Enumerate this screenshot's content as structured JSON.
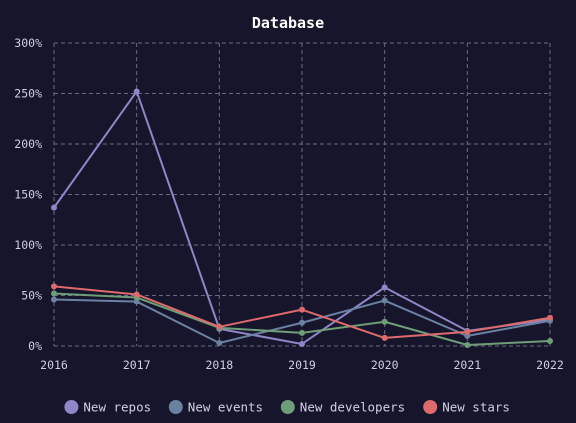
{
  "chart_data": {
    "type": "line",
    "title": "Database",
    "xlabel": "",
    "ylabel": "",
    "x": [
      "2016",
      "2017",
      "2018",
      "2019",
      "2020",
      "2021",
      "2022"
    ],
    "ylim": [
      0,
      300
    ],
    "yticks": [
      0,
      50,
      100,
      150,
      200,
      250,
      300
    ],
    "ytick_labels": [
      "0%",
      "50%",
      "100%",
      "150%",
      "200%",
      "250%",
      "300%"
    ],
    "grid": true,
    "legend_position": "bottom",
    "series": [
      {
        "name": "New repos",
        "color": "#8e86c6",
        "values": [
          137,
          252,
          17,
          2,
          58,
          15,
          26
        ]
      },
      {
        "name": "New events",
        "color": "#6b81a2",
        "values": [
          46,
          44,
          3,
          23,
          45,
          10,
          25
        ]
      },
      {
        "name": "New developers",
        "color": "#6f9d78",
        "values": [
          52,
          48,
          18,
          13,
          24,
          1,
          5
        ]
      },
      {
        "name": "New stars",
        "color": "#dd6a6c",
        "values": [
          59,
          51,
          19,
          36,
          8,
          14,
          28
        ]
      }
    ]
  }
}
